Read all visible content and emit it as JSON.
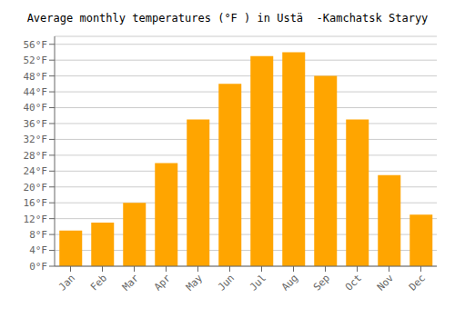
{
  "chart_data": {
    "type": "bar",
    "title": "Average monthly temperatures (°F ) in Ustä  -Kamchatsk Staryy",
    "categories": [
      "Jan",
      "Feb",
      "Mar",
      "Apr",
      "May",
      "Jun",
      "Jul",
      "Aug",
      "Sep",
      "Oct",
      "Nov",
      "Dec"
    ],
    "values": [
      9,
      11,
      16,
      26,
      37,
      46,
      53,
      54,
      48,
      37,
      23,
      13
    ],
    "color": "#FFA500",
    "ylim": [
      0,
      58
    ],
    "yticks": [
      {
        "value": 0,
        "label": "0°F"
      },
      {
        "value": 4,
        "label": "4°F"
      },
      {
        "value": 8,
        "label": "8°F"
      },
      {
        "value": 12,
        "label": "12°F"
      },
      {
        "value": 16,
        "label": "16°F"
      },
      {
        "value": 20,
        "label": "20°F"
      },
      {
        "value": 24,
        "label": "24°F"
      },
      {
        "value": 28,
        "label": "28°F"
      },
      {
        "value": 32,
        "label": "32°F"
      },
      {
        "value": 36,
        "label": "36°F"
      },
      {
        "value": 40,
        "label": "40°F"
      },
      {
        "value": 44,
        "label": "44°F"
      },
      {
        "value": 48,
        "label": "48°F"
      },
      {
        "value": 52,
        "label": "52°F"
      },
      {
        "value": 56,
        "label": "56°F"
      }
    ],
    "grid": true
  }
}
